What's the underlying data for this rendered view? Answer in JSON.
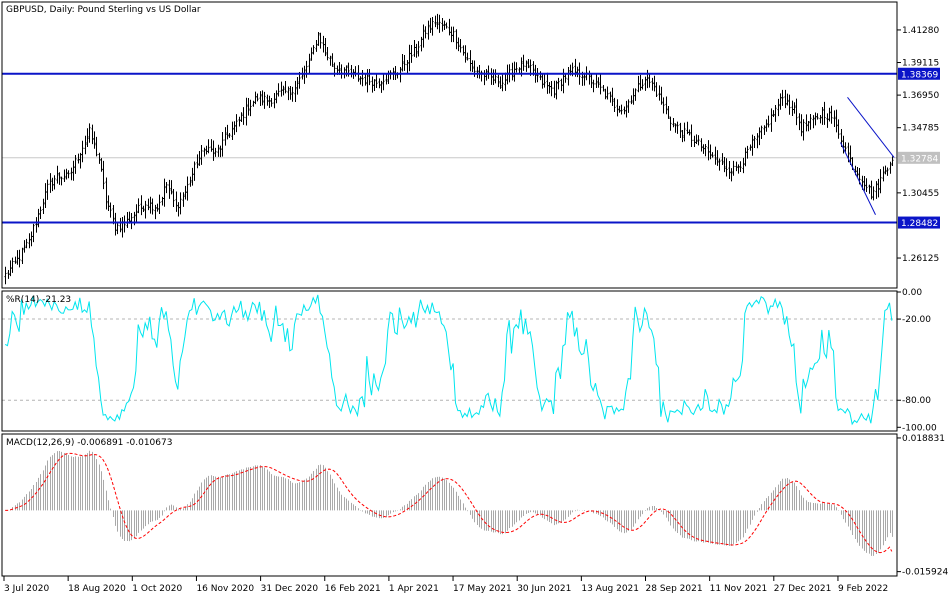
{
  "header": {
    "symbol_line": "GBPUSD, Daily:  Pound Sterling vs US Dollar",
    "wpr_label": "%R(14) -21.23",
    "macd_label": "MACD(12,26,9) -0.006891 -0.010673"
  },
  "colors": {
    "candle": "#000000",
    "hline": "#0a14c8",
    "trendline": "#0a14c8",
    "wpr": "#00e5ee",
    "macd_hist": "#a9a9a9",
    "macd_signal": "#ff0000",
    "current_price_box": "#c0c0c0"
  },
  "chart_data": [
    {
      "type": "candlestick",
      "panel": "price",
      "title": "GBPUSD, Daily:  Pound Sterling vs US Dollar",
      "ylim": [
        1.242,
        1.4307
      ],
      "y_ticks": [
        "1.41280",
        "1.39115",
        "1.36950",
        "1.34785",
        "1.30455",
        "1.26125"
      ],
      "y_tick_values": [
        1.4128,
        1.39115,
        1.3695,
        1.34785,
        1.30455,
        1.26125
      ],
      "horizontal_levels": [
        {
          "value": 1.38369,
          "label": "1.38369"
        },
        {
          "value": 1.28482,
          "label": "1.28482"
        }
      ],
      "current_price": {
        "value": 1.32784,
        "label": "1.32784"
      },
      "x_labels": [
        "3 Jul 2020",
        "18 Aug 2020",
        "1 Oct 2020",
        "16 Nov 2020",
        "31 Dec 2020",
        "16 Feb 2021",
        "1 Apr 2021",
        "17 May 2021",
        "30 Jun 2021",
        "13 Aug 2021",
        "28 Sep 2021",
        "11 Nov 2021",
        "27 Dec 2021",
        "9 Feb 2022"
      ],
      "close_path": [
        [
          0,
          1.25
        ],
        [
          6,
          1.262
        ],
        [
          10,
          1.272
        ],
        [
          14,
          1.29
        ],
        [
          18,
          1.308
        ],
        [
          22,
          1.316
        ],
        [
          27,
          1.315
        ],
        [
          32,
          1.332
        ],
        [
          36,
          1.345
        ],
        [
          40,
          1.327
        ],
        [
          43,
          1.3
        ],
        [
          47,
          1.282
        ],
        [
          51,
          1.284
        ],
        [
          56,
          1.292
        ],
        [
          60,
          1.298
        ],
        [
          65,
          1.295
        ],
        [
          69,
          1.31
        ],
        [
          73,
          1.295
        ],
        [
          77,
          1.305
        ],
        [
          82,
          1.325
        ],
        [
          86,
          1.335
        ],
        [
          90,
          1.33
        ],
        [
          95,
          1.343
        ],
        [
          99,
          1.35
        ],
        [
          104,
          1.362
        ],
        [
          108,
          1.368
        ],
        [
          113,
          1.366
        ],
        [
          118,
          1.371
        ],
        [
          122,
          1.372
        ],
        [
          127,
          1.382
        ],
        [
          131,
          1.395
        ],
        [
          134,
          1.41
        ],
        [
          137,
          1.398
        ],
        [
          141,
          1.388
        ],
        [
          145,
          1.386
        ],
        [
          150,
          1.382
        ],
        [
          154,
          1.38
        ],
        [
          159,
          1.378
        ],
        [
          163,
          1.382
        ],
        [
          168,
          1.385
        ],
        [
          172,
          1.393
        ],
        [
          176,
          1.4
        ],
        [
          180,
          1.412
        ],
        [
          184,
          1.418
        ],
        [
          188,
          1.415
        ],
        [
          192,
          1.41
        ],
        [
          196,
          1.398
        ],
        [
          200,
          1.387
        ],
        [
          205,
          1.383
        ],
        [
          209,
          1.38
        ],
        [
          213,
          1.378
        ],
        [
          218,
          1.387
        ],
        [
          222,
          1.39
        ],
        [
          226,
          1.385
        ],
        [
          231,
          1.376
        ],
        [
          235,
          1.373
        ],
        [
          239,
          1.381
        ],
        [
          243,
          1.385
        ],
        [
          248,
          1.383
        ],
        [
          252,
          1.378
        ],
        [
          256,
          1.372
        ],
        [
          261,
          1.363
        ],
        [
          265,
          1.36
        ],
        [
          269,
          1.37
        ],
        [
          274,
          1.381
        ],
        [
          278,
          1.375
        ],
        [
          282,
          1.362
        ],
        [
          286,
          1.35
        ],
        [
          291,
          1.344
        ],
        [
          295,
          1.34
        ],
        [
          299,
          1.334
        ],
        [
          303,
          1.328
        ],
        [
          308,
          1.322
        ],
        [
          312,
          1.32
        ],
        [
          316,
          1.326
        ],
        [
          320,
          1.337
        ],
        [
          325,
          1.347
        ],
        [
          329,
          1.357
        ],
        [
          333,
          1.368
        ],
        [
          337,
          1.362
        ],
        [
          341,
          1.348
        ],
        [
          346,
          1.352
        ],
        [
          350,
          1.358
        ],
        [
          354,
          1.355
        ],
        [
          357,
          1.345
        ],
        [
          361,
          1.33
        ],
        [
          364,
          1.32
        ],
        [
          368,
          1.312
        ],
        [
          371,
          1.304
        ],
        [
          374,
          1.31
        ],
        [
          377,
          1.32
        ],
        [
          380,
          1.328
        ]
      ]
    },
    {
      "type": "line",
      "panel": "williams_r",
      "title": "%R(14) -21.23",
      "ylim": [
        -102,
        0
      ],
      "y_ticks": [
        "0.00",
        "-20.00",
        "-80.00",
        "-100.00"
      ],
      "y_tick_values": [
        0,
        -20,
        -80,
        -100
      ],
      "levels": [
        -20,
        -80
      ],
      "last_value": -21.23
    },
    {
      "type": "histogram+line",
      "panel": "macd",
      "title": "MACD(12,26,9) -0.006891 -0.010673",
      "ylim": [
        -0.0168,
        0.0196
      ],
      "y_ticks": [
        "0.018831",
        "-0.015924"
      ],
      "y_tick_values": [
        0.018831,
        -0.015924
      ],
      "last_macd": -0.006891,
      "last_signal": -0.010673
    }
  ]
}
